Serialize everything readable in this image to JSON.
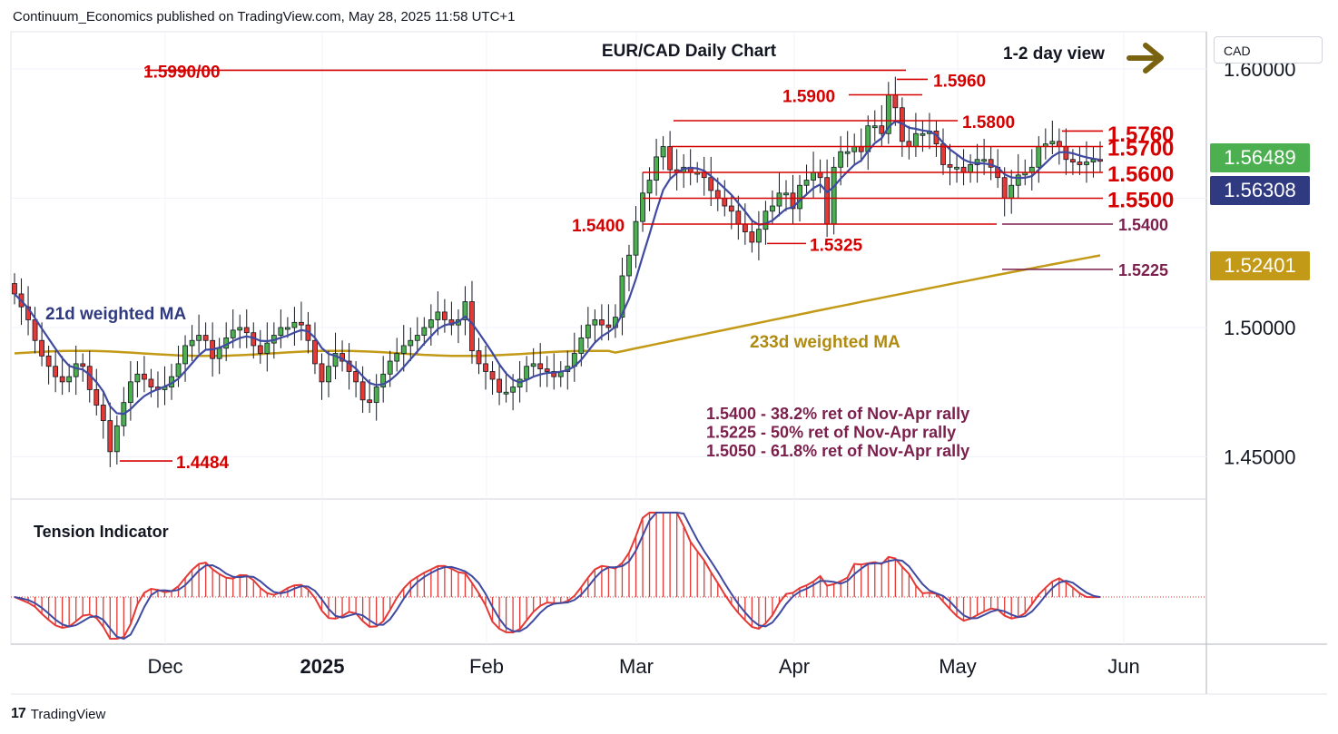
{
  "header": {
    "publisher": "Continuum_Economics published on TradingView.com, May 28, 2025 11:58 UTC+1"
  },
  "footer": {
    "brand": "TradingView",
    "logo": "17"
  },
  "currency_box": "CAD",
  "price_tags": [
    {
      "value": "1.56489",
      "color": "#4caf50"
    },
    {
      "value": "1.56308",
      "color": "#2f3a80"
    },
    {
      "value": "1.52401",
      "color": "#c39a17"
    }
  ],
  "chart_data": {
    "type": "candlestick",
    "title": "EUR/CAD Daily Chart",
    "view_note": "1-2 day view",
    "y_ticks": [
      "1.60000",
      "1.50000",
      "1.45000"
    ],
    "x_ticks": [
      "Dec",
      "2025",
      "Feb",
      "Mar",
      "Apr",
      "May",
      "Jun"
    ],
    "levels": [
      {
        "label": "1.5990/00",
        "value": 1.5995
      },
      {
        "label": "1.5960",
        "value": 1.596
      },
      {
        "label": "1.5900",
        "value": 1.59
      },
      {
        "label": "1.5800",
        "value": 1.58
      },
      {
        "label": "1.5760",
        "value": 1.576
      },
      {
        "label": "1.5700",
        "value": 1.57
      },
      {
        "label": "1.5600",
        "value": 1.56
      },
      {
        "label": "1.5500",
        "value": 1.55
      },
      {
        "label": "1.5400",
        "value": 1.54
      },
      {
        "label": "1.5325",
        "value": 1.5325
      },
      {
        "label": "1.5225",
        "value": 1.5225
      },
      {
        "label": "1.4484",
        "value": 1.4484
      }
    ],
    "ma_labels": {
      "ma21": "21d weighted MA",
      "ma233": "233d weighted MA"
    },
    "notes": [
      "1.5400 - 38.2% ret of Nov-Apr rally",
      "1.5225 - 50% ret of Nov-Apr rally",
      "1.5050 - 61.8% ret of Nov-Apr rally"
    ],
    "indicator_label": "Tension Indicator",
    "closes": [
      1.513,
      1.508,
      1.503,
      1.495,
      1.489,
      1.485,
      1.481,
      1.479,
      1.481,
      1.486,
      1.485,
      1.476,
      1.47,
      1.464,
      1.452,
      1.462,
      1.471,
      1.479,
      1.482,
      1.48,
      1.477,
      1.476,
      1.477,
      1.481,
      1.486,
      1.493,
      1.495,
      1.497,
      1.495,
      1.488,
      1.492,
      1.496,
      1.499,
      1.5,
      1.498,
      1.493,
      1.49,
      1.494,
      1.497,
      1.5,
      1.5,
      1.502,
      1.501,
      1.495,
      1.486,
      1.479,
      1.485,
      1.49,
      1.487,
      1.483,
      1.479,
      1.472,
      1.471,
      1.477,
      1.482,
      1.487,
      1.49,
      1.493,
      1.495,
      1.497,
      1.5,
      1.503,
      1.506,
      1.503,
      1.501,
      1.503,
      1.51,
      1.491,
      1.486,
      1.483,
      1.48,
      1.475,
      1.475,
      1.477,
      1.48,
      1.485,
      1.486,
      1.484,
      1.483,
      1.481,
      1.483,
      1.485,
      1.49,
      1.496,
      1.501,
      1.503,
      1.501,
      1.5,
      1.504,
      1.52,
      1.528,
      1.541,
      1.552,
      1.557,
      1.566,
      1.57,
      1.561,
      1.56,
      1.562,
      1.56,
      1.56,
      1.558,
      1.553,
      1.55,
      1.547,
      1.545,
      1.54,
      1.537,
      1.533,
      1.538,
      1.545,
      1.547,
      1.552,
      1.552,
      1.546,
      1.555,
      1.557,
      1.56,
      1.558,
      1.54,
      1.562,
      1.568,
      1.568,
      1.57,
      1.568,
      1.578,
      1.578,
      1.575,
      1.59,
      1.585,
      1.572,
      1.57,
      1.575,
      1.575,
      1.576,
      1.571,
      1.563,
      1.562,
      1.562,
      1.56,
      1.563,
      1.565,
      1.565,
      1.562,
      1.558,
      1.55,
      1.555,
      1.559,
      1.56,
      1.562,
      1.57,
      1.571,
      1.572,
      1.57,
      1.565,
      1.564,
      1.563,
      1.564,
      1.565,
      1.5649
    ]
  }
}
